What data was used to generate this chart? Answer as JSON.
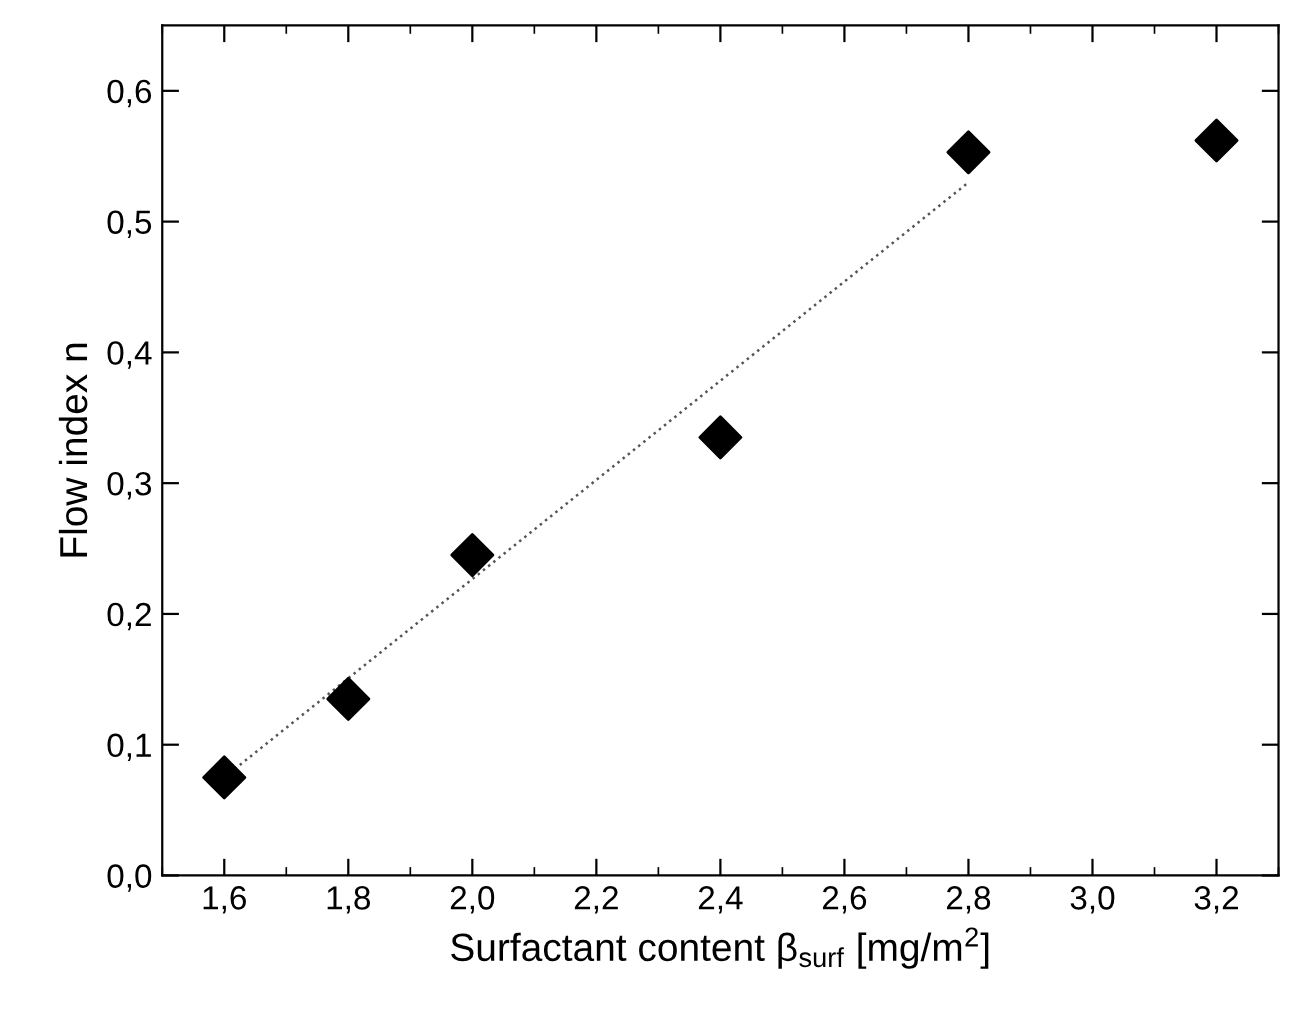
{
  "chart_data": {
    "type": "scatter",
    "xlabel": "Surfactant content β$_{surf}$ [mg/m$^{2}$]",
    "ylabel": "Flow index n",
    "xlim": [
      1.5,
      3.3
    ],
    "ylim": [
      0,
      0.65
    ],
    "xticks": [
      {
        "value": 1.6,
        "label": "1,6"
      },
      {
        "value": 1.8,
        "label": "1,8"
      },
      {
        "value": 2.0,
        "label": "2,0"
      },
      {
        "value": 2.2,
        "label": "2,2"
      },
      {
        "value": 2.4,
        "label": "2,4"
      },
      {
        "value": 2.6,
        "label": "2,6"
      },
      {
        "value": 2.8,
        "label": "2,8"
      },
      {
        "value": 3.0,
        "label": "3,0"
      },
      {
        "value": 3.2,
        "label": "3,2"
      }
    ],
    "yticks": [
      {
        "value": 0,
        "label": "0,0"
      },
      {
        "value": 0.1,
        "label": "0,1"
      },
      {
        "value": 0.2,
        "label": "0,2"
      },
      {
        "value": 0.3,
        "label": "0,3"
      },
      {
        "value": 0.4,
        "label": "0,4"
      },
      {
        "value": 0.5,
        "label": "0,5"
      },
      {
        "value": 0.6,
        "label": "0,6"
      }
    ],
    "grid": false,
    "legend": false,
    "series": [
      {
        "color": "#000000",
        "marker": "diamond",
        "x": [
          1.6,
          1.8,
          2.0,
          2.4,
          2.8,
          3.2
        ],
        "values": [
          0.075,
          0.135,
          0.245,
          0.335,
          0.553,
          0.562
        ]
      },
      {
        "type": "line",
        "color": "#555555",
        "marker": "none",
        "line_style": "dotted",
        "x": [
          1.6,
          2.8
        ],
        "values": [
          0.075,
          0.53
        ]
      }
    ]
  }
}
